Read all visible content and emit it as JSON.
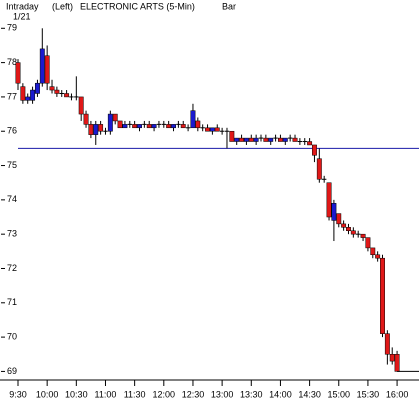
{
  "chart_data": {
    "type": "candlestick",
    "mode": "Intraday",
    "axis_side": "(Left)",
    "title": "ELECTRONIC ARTS  (5-Min)",
    "style": "Bar",
    "date": "1/21",
    "categories": [
      "9:30",
      null,
      null,
      null,
      null,
      null,
      "10:00",
      null,
      null,
      null,
      null,
      null,
      "10:30",
      null,
      null,
      null,
      null,
      null,
      "11:00",
      null,
      null,
      null,
      null,
      null,
      "11:30",
      null,
      null,
      null,
      null,
      null,
      "12:00",
      null,
      null,
      null,
      null,
      null,
      "12:30",
      null,
      null,
      null,
      null,
      null,
      "13:00",
      null,
      null,
      null,
      null,
      null,
      "13:30",
      null,
      null,
      null,
      null,
      null,
      "14:00",
      null,
      null,
      null,
      null,
      null,
      "14:30",
      null,
      null,
      null,
      null,
      null,
      "15:00",
      null,
      null,
      null,
      null,
      null,
      "15:30",
      null,
      null,
      null,
      null,
      null,
      "16:00"
    ],
    "open": [
      78.0,
      77.3,
      76.9,
      76.9,
      77.1,
      77.4,
      78.2,
      77.3,
      77.2,
      77.1,
      77.1,
      77.0,
      77.0,
      77.0,
      76.5,
      76.2,
      75.9,
      76.2,
      76.0,
      76.0,
      76.5,
      76.3,
      76.1,
      76.2,
      76.2,
      76.1,
      76.2,
      76.2,
      76.1,
      76.2,
      76.2,
      76.2,
      76.1,
      76.2,
      76.2,
      76.1,
      76.1,
      76.3,
      76.1,
      76.1,
      76.0,
      76.1,
      76.0,
      76.0,
      76.0,
      75.7,
      75.8,
      75.7,
      75.8,
      75.7,
      75.8,
      75.8,
      75.7,
      75.8,
      75.8,
      75.7,
      75.8,
      75.8,
      75.7,
      75.7,
      75.7,
      75.6,
      75.2,
      74.6,
      74.5,
      73.4,
      73.6,
      73.3,
      73.2,
      73.1,
      73.0,
      73.0,
      72.9,
      72.6,
      72.4,
      72.3,
      70.1,
      69.5,
      69.5
    ],
    "high": [
      78.1,
      77.4,
      77.1,
      77.3,
      77.5,
      79.0,
      78.5,
      77.5,
      77.3,
      77.2,
      77.2,
      77.1,
      77.6,
      77.0,
      76.6,
      76.3,
      76.3,
      76.3,
      76.1,
      76.6,
      76.5,
      76.3,
      76.3,
      76.3,
      76.3,
      76.2,
      76.3,
      76.3,
      76.2,
      76.3,
      76.3,
      76.3,
      76.2,
      76.3,
      76.3,
      76.2,
      76.8,
      76.4,
      76.2,
      76.2,
      76.1,
      76.2,
      76.1,
      76.1,
      76.0,
      75.8,
      75.9,
      75.8,
      75.9,
      75.9,
      75.9,
      75.9,
      75.8,
      75.9,
      75.9,
      75.8,
      75.9,
      75.9,
      75.8,
      75.8,
      75.8,
      75.6,
      75.5,
      74.7,
      74.5,
      74.0,
      73.6,
      73.4,
      73.3,
      73.2,
      73.1,
      73.0,
      72.9,
      72.6,
      72.5,
      72.4,
      70.2,
      69.7,
      69.6
    ],
    "low": [
      77.2,
      76.8,
      76.8,
      76.8,
      77.0,
      77.3,
      77.2,
      77.1,
      77.0,
      77.0,
      77.0,
      76.9,
      76.9,
      76.3,
      76.1,
      75.8,
      75.6,
      75.9,
      75.9,
      75.9,
      76.2,
      76.1,
      76.1,
      76.1,
      76.1,
      76.0,
      76.1,
      76.1,
      76.0,
      76.1,
      76.1,
      76.1,
      76.0,
      76.1,
      76.1,
      76.0,
      76.1,
      76.0,
      76.0,
      76.0,
      75.9,
      76.0,
      75.9,
      75.5,
      75.7,
      75.6,
      75.7,
      75.6,
      75.7,
      75.6,
      75.7,
      75.7,
      75.6,
      75.7,
      75.7,
      75.6,
      75.7,
      75.7,
      75.6,
      75.6,
      75.6,
      75.1,
      74.5,
      74.5,
      73.4,
      72.8,
      73.2,
      73.1,
      73.0,
      72.9,
      72.9,
      72.8,
      72.5,
      72.3,
      72.2,
      70.0,
      69.2,
      69.2,
      69.0
    ],
    "close": [
      77.4,
      76.9,
      77.0,
      77.2,
      77.4,
      78.4,
      77.4,
      77.2,
      77.1,
      77.1,
      77.0,
      77.0,
      77.0,
      76.5,
      76.2,
      75.9,
      76.2,
      76.0,
      76.0,
      76.5,
      76.3,
      76.1,
      76.2,
      76.2,
      76.1,
      76.2,
      76.2,
      76.1,
      76.2,
      76.2,
      76.2,
      76.1,
      76.2,
      76.2,
      76.1,
      76.1,
      76.6,
      76.1,
      76.1,
      76.0,
      76.1,
      76.0,
      76.0,
      76.0,
      75.7,
      75.8,
      75.7,
      75.8,
      75.7,
      75.8,
      75.8,
      75.7,
      75.8,
      75.8,
      75.7,
      75.8,
      75.8,
      75.7,
      75.7,
      75.7,
      75.6,
      75.3,
      74.6,
      74.6,
      73.5,
      73.9,
      73.3,
      73.2,
      73.1,
      73.0,
      73.0,
      72.9,
      72.6,
      72.4,
      72.3,
      70.1,
      69.5,
      69.3,
      69.0
    ],
    "up_color": "#1a1ad0",
    "down_color": "#e01818",
    "reference_line": 75.5,
    "reference_color": "#1a1aa8",
    "ylim": [
      68.75,
      79.3
    ],
    "yticks": [
      69,
      70,
      71,
      72,
      73,
      74,
      75,
      76,
      77,
      78,
      79
    ]
  }
}
